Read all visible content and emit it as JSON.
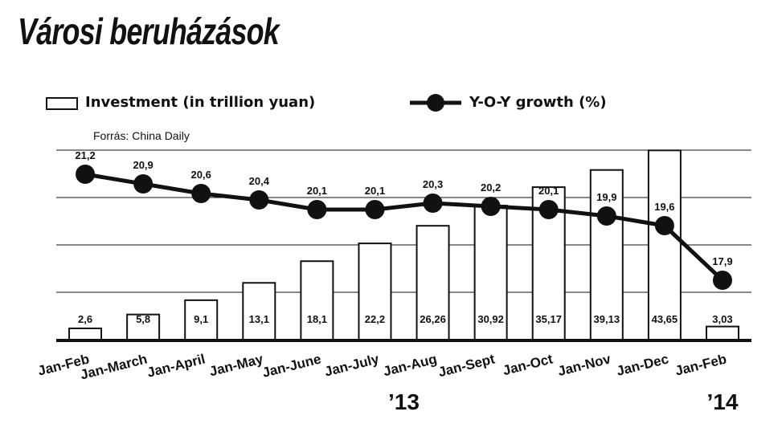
{
  "title": "Városi beruházások",
  "legend": {
    "investment": "Investment (in trillion yuan)",
    "growth": "Y-O-Y growth (%)"
  },
  "source": "Forrás: China Daily",
  "colors": {
    "ink": "#111111",
    "background": "#ffffff"
  },
  "chart_data": {
    "type": "bar",
    "categories": [
      "Jan-Feb",
      "Jan-March",
      "Jan-April",
      "Jan-May",
      "Jan-June",
      "Jan-July",
      "Jan-Aug",
      "Jan-Sept",
      "Jan-Oct",
      "Jan-Nov",
      "Jan-Dec",
      "Jan-Feb"
    ],
    "year_labels": [
      {
        "label": "’13",
        "under_index": 5.5
      },
      {
        "label": "’14",
        "under_index": 11
      }
    ],
    "series": [
      {
        "name": "Investment (in trillion yuan)",
        "type": "bar",
        "values": [
          2.6,
          5.8,
          9.1,
          13.1,
          18.1,
          22.2,
          26.26,
          30.92,
          35.17,
          39.13,
          43.65,
          3.03
        ],
        "labels": [
          "2,6",
          "5,8",
          "9,1",
          "13,1",
          "18,1",
          "22,2",
          "26,26",
          "30,92",
          "35,17",
          "39,13",
          "43,65",
          "3,03"
        ]
      },
      {
        "name": "Y-O-Y growth (%)",
        "type": "line",
        "values": [
          21.2,
          20.9,
          20.6,
          20.4,
          20.1,
          20.1,
          20.3,
          20.2,
          20.1,
          19.9,
          19.6,
          17.9
        ],
        "labels": [
          "21,2",
          "20,9",
          "20,6",
          "20,4",
          "20,1",
          "20,1",
          "20,3",
          "20,2",
          "20,1",
          "19,9",
          "19,6",
          "17,9"
        ]
      }
    ],
    "grid": true,
    "legend_position": "top"
  }
}
